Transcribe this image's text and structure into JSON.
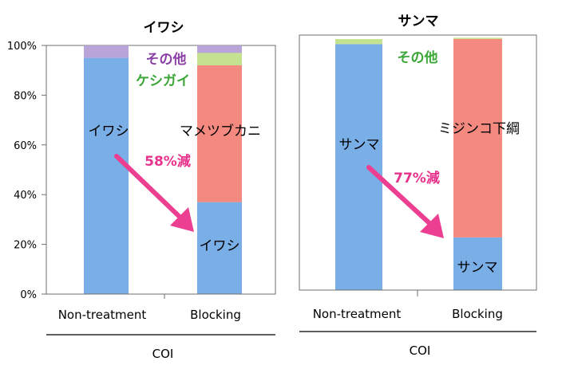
{
  "colors": {
    "fish": "#7aaee6",
    "prey": "#f48a7f",
    "other": "#b9a4d8",
    "keshigai": "#c4e28f",
    "arrow": "#ec3f92",
    "label_pink": "#e8338c",
    "label_purple": "#8b3fa6",
    "label_green": "#3aa636",
    "axis": "#6f6f6f"
  },
  "chart_data": [
    {
      "type": "bar",
      "stacked": true,
      "title": "イワシ",
      "categories": [
        "Non-treatment",
        "Blocking"
      ],
      "xlabel": "COI",
      "ylim": [
        0,
        100
      ],
      "yticks": [
        "0%",
        "20%",
        "40%",
        "60%",
        "80%",
        "100%"
      ],
      "series": [
        {
          "name": "イワシ",
          "values": [
            95,
            37
          ]
        },
        {
          "name": "マメツブカニ",
          "values": [
            0,
            55
          ]
        },
        {
          "name": "ケシガイ",
          "values": [
            0,
            5
          ]
        },
        {
          "name": "その他",
          "values": [
            5,
            3
          ]
        }
      ],
      "annotation": "58%減"
    },
    {
      "type": "bar",
      "stacked": true,
      "title": "サンマ",
      "categories": [
        "Non-treatment",
        "Blocking"
      ],
      "xlabel": "COI",
      "ylim": [
        0,
        100
      ],
      "series": [
        {
          "name": "サンマ",
          "values": [
            98,
            21
          ]
        },
        {
          "name": "ミジンコ下綱",
          "values": [
            0,
            79
          ]
        },
        {
          "name": "その他",
          "values": [
            2,
            0.5
          ]
        }
      ],
      "annotation": "77%減"
    }
  ]
}
